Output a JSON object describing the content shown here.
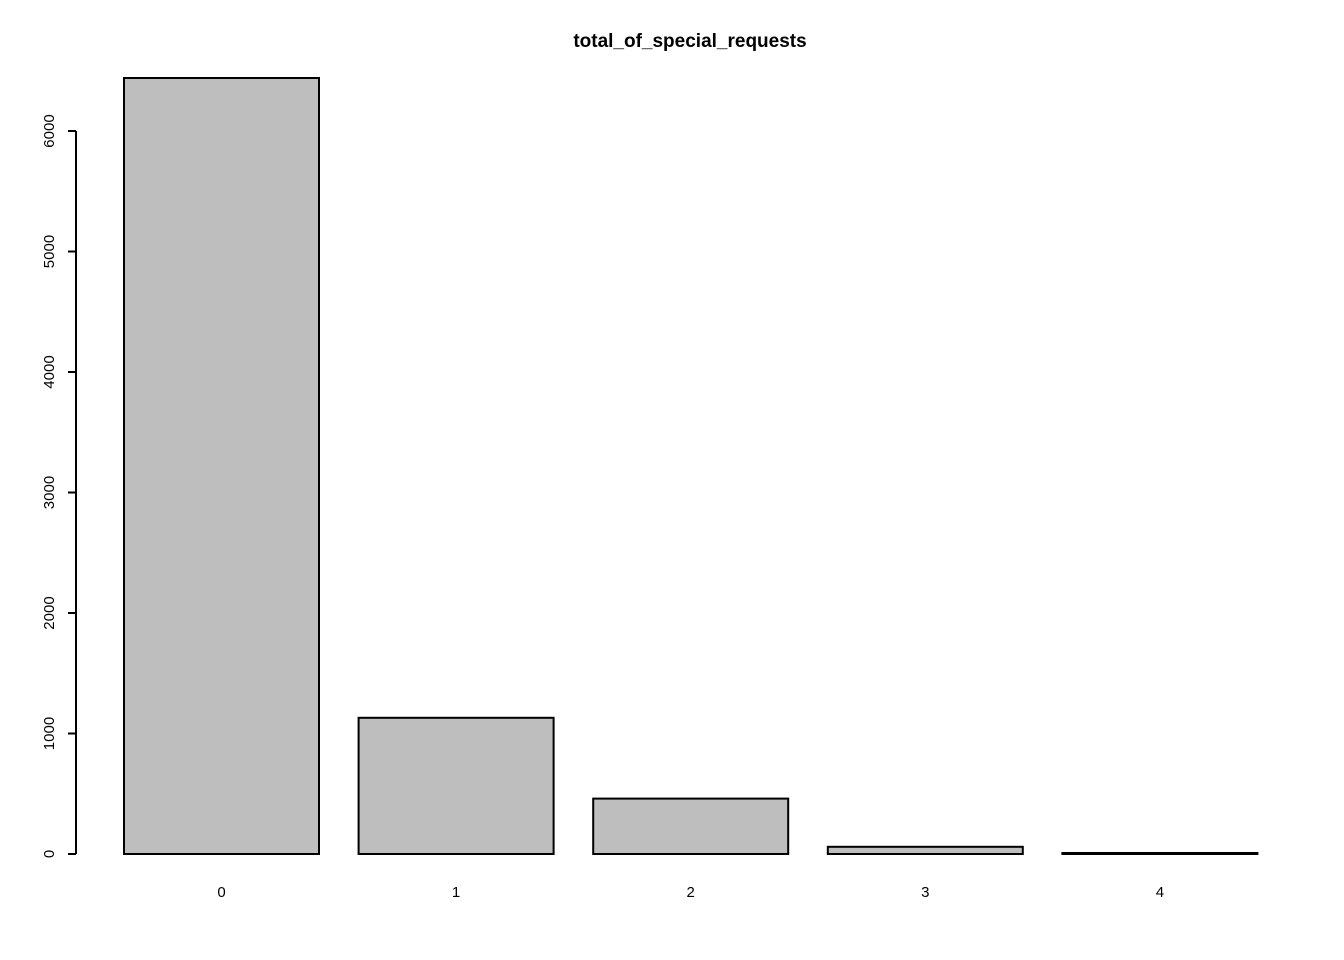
{
  "chart_data": {
    "type": "bar",
    "title": "total_of_special_requests",
    "xlabel": "",
    "ylabel": "",
    "categories": [
      "0",
      "1",
      "2",
      "3",
      "4"
    ],
    "values": [
      6440,
      1130,
      460,
      60,
      8
    ],
    "ylim": [
      0,
      6440
    ],
    "yticks": [
      0,
      1000,
      2000,
      3000,
      4000,
      5000,
      6000
    ],
    "grid": false,
    "legend": "none",
    "bar_fill": "#bebebe",
    "bar_stroke": "#000000"
  }
}
